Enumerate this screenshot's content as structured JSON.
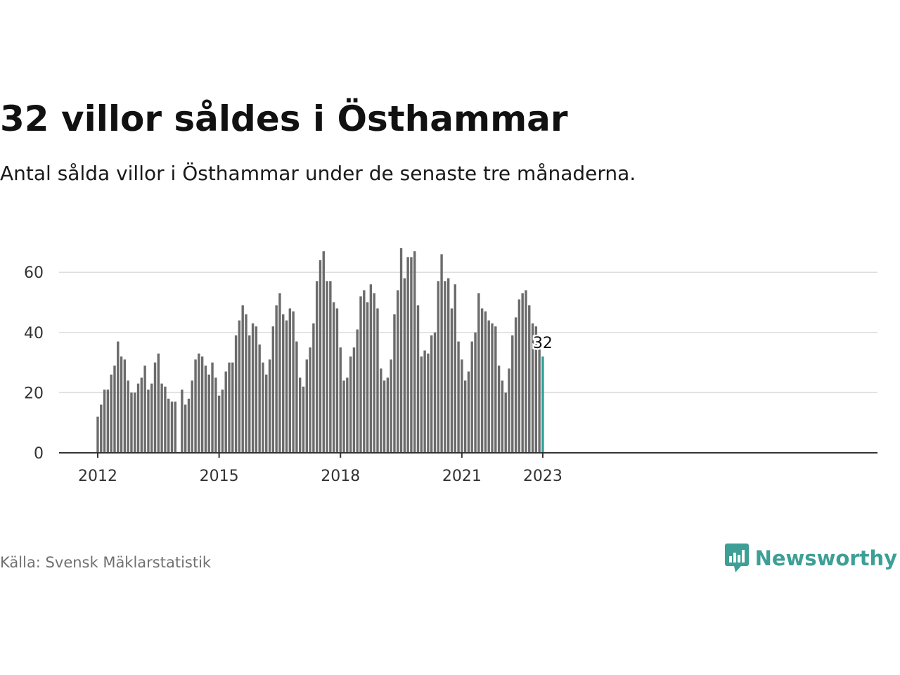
{
  "header": {
    "title": "32 villor såldes i Östhammar",
    "subtitle": "Antal sålda villor i Östhammar under de senaste tre månaderna."
  },
  "footer": {
    "source": "Källa: Svensk Mäklarstatistik",
    "brand": "Newsworthy"
  },
  "colors": {
    "bar": "#6b6b6b",
    "highlight": "#2aa198",
    "grid": "#dddddd",
    "axis": "#333333",
    "brand": "#3d9f95"
  },
  "chart_data": {
    "type": "bar",
    "x_start": "2012-01",
    "x_end": "2023-01",
    "x_ticks": [
      "2012",
      "2015",
      "2018",
      "2021",
      "2023"
    ],
    "y_ticks": [
      0,
      20,
      40,
      60
    ],
    "ylim": [
      0,
      70
    ],
    "grid": true,
    "highlight": {
      "x": "2023-01",
      "value": 32,
      "label": "32"
    },
    "values": [
      12,
      16,
      21,
      21,
      26,
      29,
      37,
      32,
      31,
      24,
      20,
      20,
      23,
      25,
      29,
      21,
      23,
      30,
      33,
      23,
      22,
      18,
      17,
      17,
      null,
      21,
      16,
      18,
      24,
      31,
      33,
      32,
      29,
      26,
      30,
      25,
      19,
      21,
      27,
      30,
      30,
      39,
      44,
      49,
      46,
      39,
      43,
      42,
      36,
      30,
      26,
      31,
      42,
      49,
      53,
      46,
      44,
      48,
      47,
      37,
      25,
      22,
      31,
      35,
      43,
      57,
      64,
      67,
      57,
      57,
      50,
      48,
      35,
      24,
      25,
      32,
      35,
      41,
      52,
      54,
      50,
      56,
      53,
      48,
      28,
      24,
      25,
      31,
      46,
      54,
      68,
      58,
      65,
      65,
      67,
      49,
      32,
      34,
      33,
      39,
      40,
      57,
      66,
      57,
      58,
      48,
      56,
      37,
      31,
      24,
      27,
      37,
      40,
      53,
      48,
      47,
      44,
      43,
      42,
      29,
      24,
      20,
      28,
      39,
      45,
      51,
      53,
      54,
      49,
      43,
      42,
      35,
      32
    ]
  }
}
